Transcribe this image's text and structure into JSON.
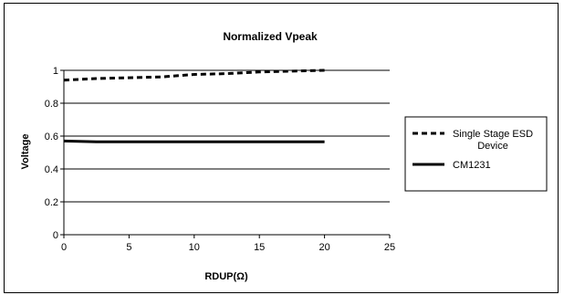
{
  "chart_data": {
    "type": "line",
    "title": "Normalized Vpeak",
    "xlabel": "RDUP(Ω)",
    "ylabel": "Voltage",
    "xlim": [
      0,
      25
    ],
    "ylim": [
      0,
      1
    ],
    "x_ticks": [
      "0",
      "5",
      "10",
      "15",
      "20",
      "25"
    ],
    "y_ticks": [
      "0",
      "0.2",
      "0.4",
      "0.6",
      "0.8",
      "1"
    ],
    "grid": "horizontal",
    "legend_position": "right",
    "series": [
      {
        "name": "Single Stage ESD Device",
        "style": "dashed",
        "color": "#000000",
        "x": [
          0,
          2.5,
          5,
          7.5,
          10,
          12.5,
          15,
          17.5,
          20
        ],
        "y": [
          0.94,
          0.95,
          0.955,
          0.96,
          0.975,
          0.98,
          0.99,
          0.995,
          1.0
        ]
      },
      {
        "name": "CM1231",
        "style": "solid",
        "color": "#000000",
        "x": [
          0,
          2.5,
          5,
          7.5,
          10,
          12.5,
          15,
          17.5,
          20
        ],
        "y": [
          0.57,
          0.565,
          0.565,
          0.565,
          0.565,
          0.565,
          0.565,
          0.565,
          0.565
        ]
      }
    ]
  }
}
